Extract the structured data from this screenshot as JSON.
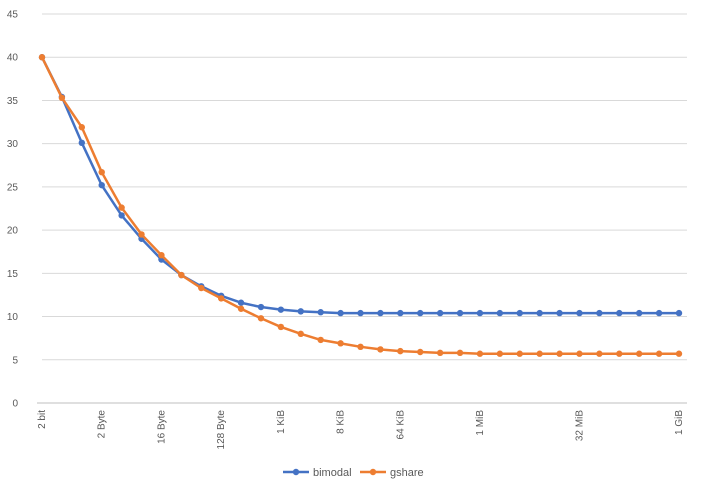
{
  "chart_data": {
    "type": "line",
    "title": "",
    "xlabel": "",
    "ylabel": "",
    "ylim": [
      0,
      45
    ],
    "yticks": [
      0,
      5,
      10,
      15,
      20,
      25,
      30,
      35,
      40,
      45
    ],
    "grid": true,
    "legend_position": "bottom",
    "x_count": 33,
    "x_tick_labels": [
      {
        "index": 0,
        "label": "2 bit"
      },
      {
        "index": 3,
        "label": "2 Byte"
      },
      {
        "index": 6,
        "label": "16 Byte"
      },
      {
        "index": 9,
        "label": "128 Byte"
      },
      {
        "index": 12,
        "label": "1 KiB"
      },
      {
        "index": 15,
        "label": "8 KiB"
      },
      {
        "index": 18,
        "label": "64 KiB"
      },
      {
        "index": 22,
        "label": "1 MiB"
      },
      {
        "index": 27,
        "label": "32 MiB"
      },
      {
        "index": 32,
        "label": "1 GiB"
      }
    ],
    "series": [
      {
        "name": "bimodal",
        "color": "#4472C4",
        "values": [
          40.0,
          35.4,
          30.1,
          25.2,
          21.7,
          19.0,
          16.6,
          14.8,
          13.5,
          12.4,
          11.6,
          11.1,
          10.8,
          10.6,
          10.5,
          10.4,
          10.4,
          10.4,
          10.4,
          10.4,
          10.4,
          10.4,
          10.4,
          10.4,
          10.4,
          10.4,
          10.4,
          10.4,
          10.4,
          10.4,
          10.4,
          10.4,
          10.4
        ]
      },
      {
        "name": "gshare",
        "color": "#ED7D31",
        "values": [
          40.0,
          35.3,
          31.9,
          26.7,
          22.6,
          19.5,
          17.1,
          14.8,
          13.3,
          12.1,
          10.9,
          9.8,
          8.8,
          8.0,
          7.3,
          6.9,
          6.5,
          6.2,
          6.0,
          5.9,
          5.8,
          5.8,
          5.7,
          5.7,
          5.7,
          5.7,
          5.7,
          5.7,
          5.7,
          5.7,
          5.7,
          5.7,
          5.7
        ]
      }
    ]
  }
}
